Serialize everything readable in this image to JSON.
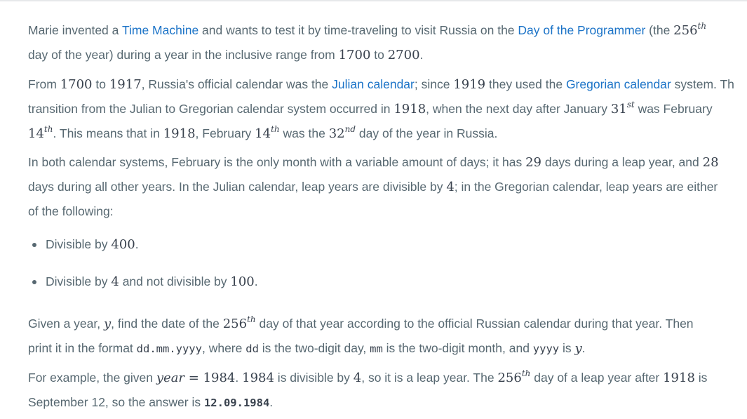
{
  "p1": {
    "t1": "Marie invented a ",
    "link_time_machine": "Time Machine",
    "t2": " and wants to test it by time-traveling to visit Russia on the ",
    "link_day_programmer": "Day of the Programmer",
    "t3": " (the ",
    "n256": "256",
    "sup_th": "th",
    "t4": "day of the year) during a year in the inclusive range from ",
    "n1700": "1700",
    "t5": " to ",
    "n2700": "2700",
    "t6": "."
  },
  "p2": {
    "t1": "From ",
    "n1700": "1700",
    "t2": " to ",
    "n1917": "1917",
    "t3": ", Russia's official calendar was the ",
    "link_julian": "Julian calendar",
    "t4": "; since ",
    "n1919": "1919",
    "t5": " they used the ",
    "link_gregorian": "Gregorian calendar",
    "t6": " system. Th",
    "t7": "transition from the Julian to Gregorian calendar system occurred in ",
    "n1918": "1918",
    "t8": ", when the next day after January ",
    "n31": "31",
    "sup_st": "st",
    "t9": " was February",
    "n14": "14",
    "sup_th": "th",
    "t10": ". This means that in ",
    "n1918b": "1918",
    "t11": ", February ",
    "n14b": "14",
    "sup_th2": "th",
    "t12": " was the ",
    "n32": "32",
    "sup_nd": "nd",
    "t13": " day of the year in Russia."
  },
  "p3": {
    "t1": "In both calendar systems, February is the only month with a variable amount of days; it has ",
    "n29": "29",
    "t2": " days during a leap year, and ",
    "n28": "28",
    "t3": "days during all other years. In the Julian calendar, leap years are divisible by ",
    "n4": "4",
    "t4": "; in the Gregorian calendar, leap years are either",
    "t5": "of the following:"
  },
  "list": {
    "li1_text": "Divisible by ",
    "li1_n400": "400",
    "li1_end": ".",
    "li2_text": "Divisible by ",
    "li2_n4": "4",
    "li2_mid": " and not divisible by ",
    "li2_n100": "100",
    "li2_end": "."
  },
  "p4": {
    "t1": "Given a year, ",
    "y": "y",
    "t2": ", find the date of the ",
    "n256": "256",
    "sup_th": "th",
    "t3": " day of that year according to the official Russian calendar during that year. Then",
    "t4": "print it in the format ",
    "code_format": "dd.mm.yyyy",
    "t5": ", where ",
    "code_dd": "dd",
    "t6": " is the two-digit day, ",
    "code_mm": "mm",
    "t7": " is the two-digit month, and ",
    "code_yyyy": "yyyy",
    "t8": " is ",
    "y2": "y",
    "t9": "."
  },
  "p5": {
    "t1": "For example, the given ",
    "year_var": "year",
    "eq": " = ",
    "n1984": "1984",
    "t2": ". ",
    "n1984b": "1984",
    "t3": " is divisible by ",
    "n4": "4",
    "t4": ", so it is a leap year. The ",
    "n256": "256",
    "sup_th": "th",
    "t5": " day of a leap year after ",
    "n1918": "1918",
    "t6": " is",
    "t7": "September 12, so the answer is ",
    "code_answer": "12.09.1984",
    "t8": "."
  }
}
